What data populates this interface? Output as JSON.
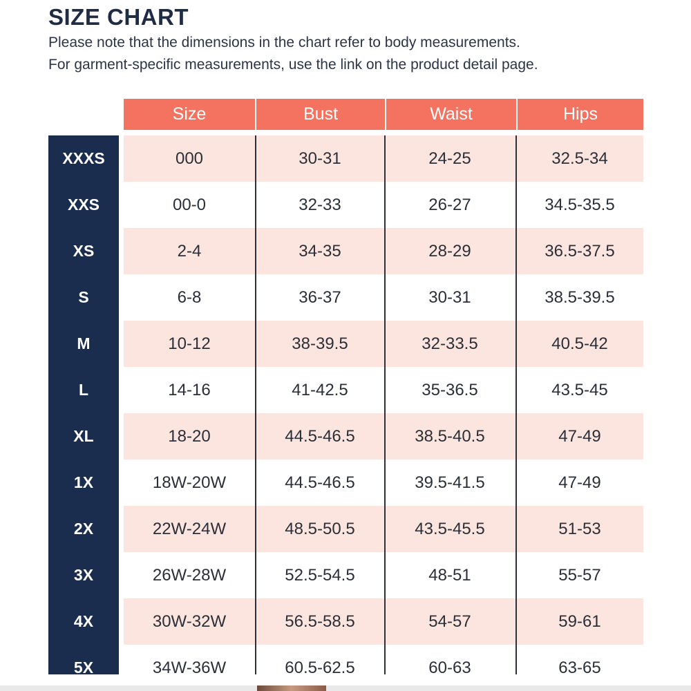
{
  "title": "SIZE CHART",
  "note_line1": "Please note that the dimensions in the chart refer to body measurements.",
  "note_line2": "For garment-specific measurements, use the link on the product detail page.",
  "headers": [
    "Size",
    "Bust",
    "Waist",
    "Hips"
  ],
  "rows": [
    {
      "label": "XXXS",
      "size": "000",
      "bust": "30-31",
      "waist": "24-25",
      "hips": "32.5-34"
    },
    {
      "label": "XXS",
      "size": "00-0",
      "bust": "32-33",
      "waist": "26-27",
      "hips": "34.5-35.5"
    },
    {
      "label": "XS",
      "size": "2-4",
      "bust": "34-35",
      "waist": "28-29",
      "hips": "36.5-37.5"
    },
    {
      "label": "S",
      "size": "6-8",
      "bust": "36-37",
      "waist": "30-31",
      "hips": "38.5-39.5"
    },
    {
      "label": "M",
      "size": "10-12",
      "bust": "38-39.5",
      "waist": "32-33.5",
      "hips": "40.5-42"
    },
    {
      "label": "L",
      "size": "14-16",
      "bust": "41-42.5",
      "waist": "35-36.5",
      "hips": "43.5-45"
    },
    {
      "label": "XL",
      "size": "18-20",
      "bust": "44.5-46.5",
      "waist": "38.5-40.5",
      "hips": "47-49"
    },
    {
      "label": "1X",
      "size": "18W-20W",
      "bust": "44.5-46.5",
      "waist": "39.5-41.5",
      "hips": "47-49"
    },
    {
      "label": "2X",
      "size": "22W-24W",
      "bust": "48.5-50.5",
      "waist": "43.5-45.5",
      "hips": "51-53"
    },
    {
      "label": "3X",
      "size": "26W-28W",
      "bust": "52.5-54.5",
      "waist": "48-51",
      "hips": "55-57"
    },
    {
      "label": "4X",
      "size": "30W-32W",
      "bust": "56.5-58.5",
      "waist": "54-57",
      "hips": "59-61"
    },
    {
      "label": "5X",
      "size": "34W-36W",
      "bust": "60.5-62.5",
      "waist": "60-63",
      "hips": "63-65"
    }
  ],
  "colors": {
    "header_bg": "#f47260",
    "size_column_bg": "#1a2d4e",
    "stripe_pink": "#fce4df",
    "title_text": "#1f2d44"
  }
}
